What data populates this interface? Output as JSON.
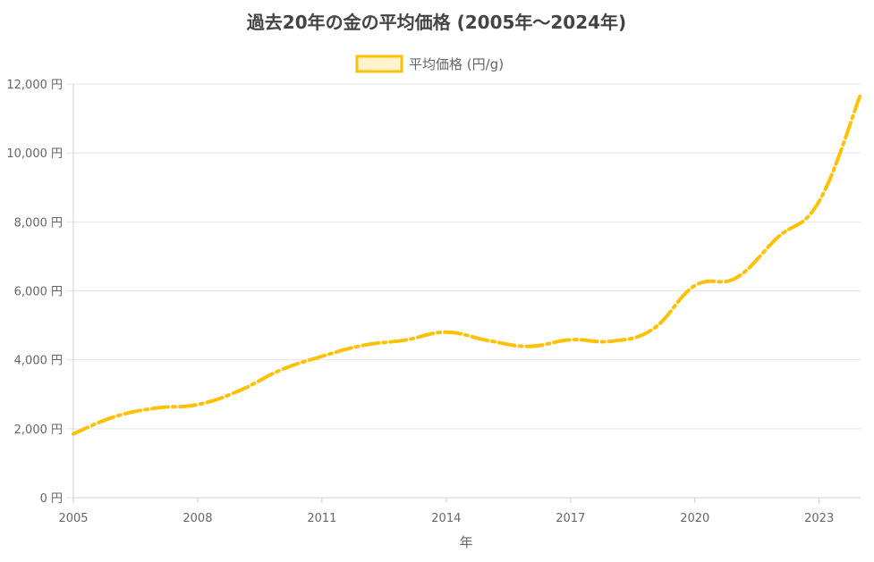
{
  "chart_data": {
    "type": "line",
    "title": "過去20年の金の平均価格 (2005年〜2024年)",
    "xlabel": "年",
    "ylabel": "",
    "legend": {
      "position": "top",
      "label": "平均価格 (円/g)"
    },
    "grid": true,
    "x": [
      2005,
      2006,
      2007,
      2008,
      2009,
      2010,
      2011,
      2012,
      2013,
      2014,
      2015,
      2016,
      2017,
      2018,
      2019,
      2020,
      2021,
      2022,
      2023,
      2024
    ],
    "x_tick_labels": [
      "2005",
      "2008",
      "2011",
      "2014",
      "2017",
      "2020",
      "2023"
    ],
    "xlim": [
      2005,
      2024
    ],
    "series": [
      {
        "name": "平均価格 (円/g)",
        "values": [
          1850,
          2350,
          2600,
          2700,
          3100,
          3700,
          4100,
          4420,
          4570,
          4800,
          4560,
          4390,
          4580,
          4540,
          4900,
          6150,
          6380,
          7550,
          8600,
          11700
        ],
        "color": "#FFC107",
        "fill": "#FFF3CD"
      }
    ],
    "ylim": [
      0,
      12000
    ],
    "y_ticks": [
      0,
      2000,
      4000,
      6000,
      8000,
      10000,
      12000
    ],
    "y_tick_labels": [
      "0 円",
      "2,000 円",
      "4,000 円",
      "6,000 円",
      "8,000 円",
      "10,000 円",
      "12,000 円"
    ]
  },
  "colors": {
    "line": "#FFC107",
    "grid": "#e5e5e5",
    "axis": "#d0d0d0",
    "text": "#666666",
    "title": "#444444"
  }
}
